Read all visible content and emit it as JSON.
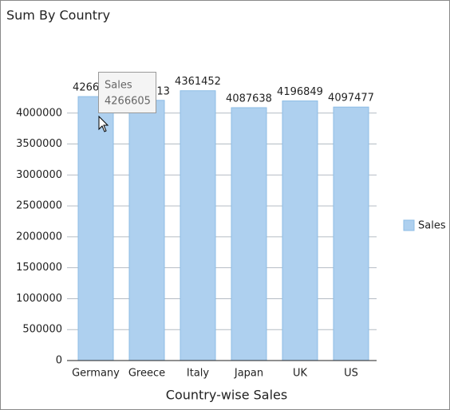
{
  "chart_data": {
    "type": "bar",
    "title": "Sum By Country",
    "x_label": "Country-wise Sales",
    "categories": [
      "Germany",
      "Greece",
      "Italy",
      "Japan",
      "UK",
      "US"
    ],
    "series": [
      {
        "name": "Sales",
        "color": "#aed0ef",
        "values": [
          4266605,
          4206413,
          4361452,
          4087638,
          4196849,
          4097477
        ]
      }
    ],
    "ylim": [
      0,
      4500000
    ],
    "yticks": [
      0,
      500000,
      1000000,
      1500000,
      2000000,
      2500000,
      3000000,
      3500000,
      4000000
    ],
    "grid": true,
    "legend": "right"
  }
}
